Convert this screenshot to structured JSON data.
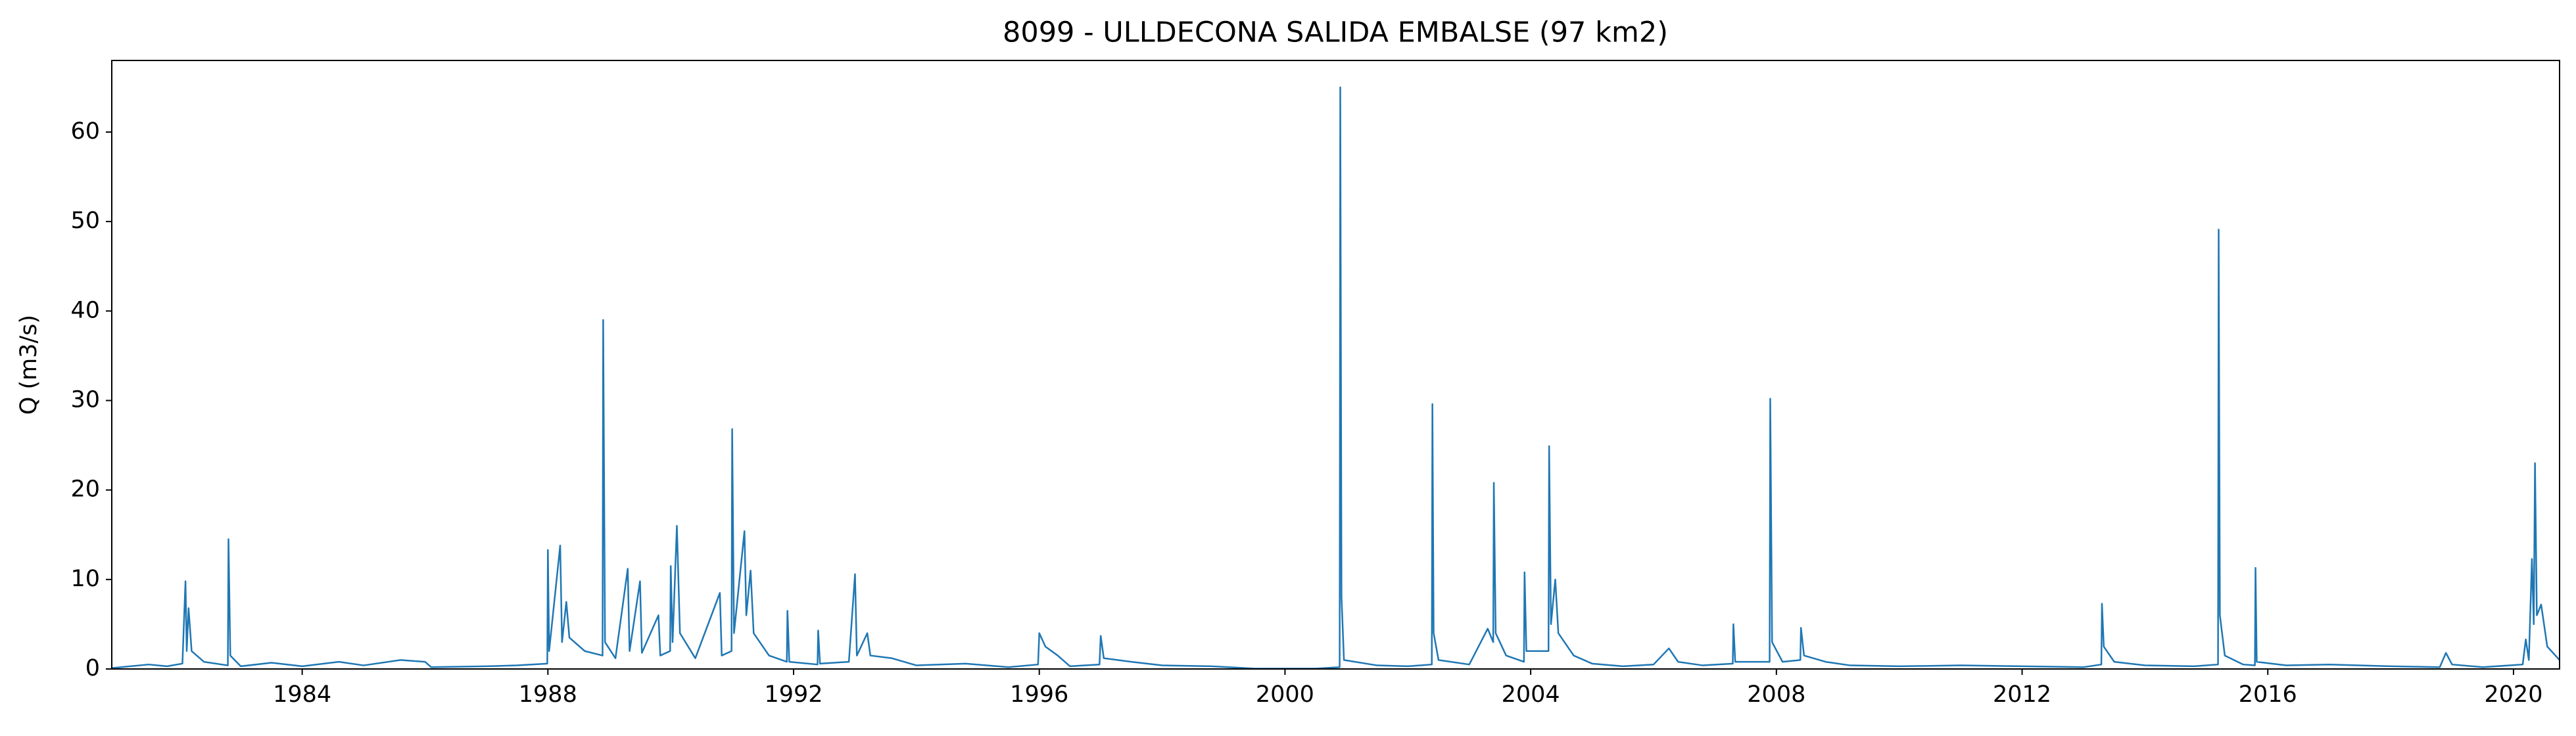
{
  "chart_data": {
    "type": "line",
    "title": "8099 - ULLDECONA SALIDA EMBALSE (97 km2)",
    "y_label": "Q (m3/s)",
    "color": "#1f77b4",
    "xlim": [
      1980.9,
      2020.75
    ],
    "xticks": [
      1984,
      1988,
      1992,
      1996,
      2000,
      2004,
      2008,
      2012,
      2016,
      2020
    ],
    "ylim": [
      0,
      68
    ],
    "yticks": [
      0,
      10,
      20,
      30,
      40,
      50,
      60
    ],
    "grid": false,
    "x": [
      1980.9,
      1981.5,
      1981.8,
      1982.05,
      1982.1,
      1982.12,
      1982.15,
      1982.2,
      1982.4,
      1982.79,
      1982.8,
      1982.83,
      1983.0,
      1983.5,
      1984.0,
      1984.6,
      1985.0,
      1985.6,
      1986.0,
      1986.1,
      1987.0,
      1987.5,
      1987.99,
      1988.0,
      1988.02,
      1988.2,
      1988.23,
      1988.3,
      1988.35,
      1988.6,
      1988.89,
      1988.9,
      1988.93,
      1989.1,
      1989.3,
      1989.33,
      1989.5,
      1989.53,
      1989.8,
      1989.83,
      1989.99,
      1990.0,
      1990.03,
      1990.1,
      1990.15,
      1990.4,
      1990.8,
      1990.83,
      1990.99,
      1991.0,
      1991.03,
      1991.2,
      1991.23,
      1991.3,
      1991.35,
      1991.6,
      1991.89,
      1991.9,
      1991.93,
      1992.39,
      1992.4,
      1992.43,
      1992.9,
      1993.0,
      1993.03,
      1993.2,
      1993.25,
      1993.6,
      1994.0,
      1994.8,
      1995.5,
      1995.98,
      1996.0,
      1996.1,
      1996.3,
      1996.5,
      1996.98,
      1997.0,
      1997.05,
      1997.5,
      1998.0,
      1998.8,
      1999.5,
      2000.5,
      2000.89,
      2000.9,
      2000.92,
      2000.96,
      2001.5,
      2002.0,
      2002.39,
      2002.4,
      2002.42,
      2002.5,
      2003.0,
      2003.3,
      2003.39,
      2003.4,
      2003.43,
      2003.6,
      2003.89,
      2003.9,
      2003.93,
      2004.29,
      2004.3,
      2004.33,
      2004.4,
      2004.45,
      2004.7,
      2005.0,
      2005.5,
      2006.0,
      2006.25,
      2006.4,
      2006.8,
      2007.29,
      2007.3,
      2007.33,
      2007.89,
      2007.9,
      2007.93,
      2008.1,
      2008.39,
      2008.4,
      2008.45,
      2008.8,
      2009.2,
      2010.0,
      2011.0,
      2012.0,
      2013.0,
      2013.29,
      2013.3,
      2013.33,
      2013.5,
      2014.0,
      2014.8,
      2015.19,
      2015.2,
      2015.22,
      2015.3,
      2015.6,
      2015.79,
      2015.8,
      2015.82,
      2016.3,
      2017.0,
      2018.0,
      2018.8,
      2018.9,
      2019.0,
      2019.5,
      2020.15,
      2020.2,
      2020.25,
      2020.3,
      2020.33,
      2020.35,
      2020.38,
      2020.45,
      2020.55,
      2020.75
    ],
    "values": [
      0.1,
      0.5,
      0.3,
      0.6,
      9.8,
      2,
      6.8,
      2,
      0.8,
      0.4,
      14.5,
      1.5,
      0.3,
      0.7,
      0.3,
      0.8,
      0.4,
      1.0,
      0.8,
      0.2,
      0.3,
      0.4,
      0.6,
      13.3,
      2,
      13.8,
      3,
      7.5,
      3.5,
      2,
      1.5,
      39,
      3,
      1.2,
      11.2,
      2,
      9.8,
      1.8,
      6,
      1.5,
      2,
      11.5,
      3,
      16,
      4,
      1.2,
      8.5,
      1.5,
      2,
      26.8,
      4,
      15.4,
      6,
      11,
      4,
      1.5,
      0.8,
      6.5,
      0.8,
      0.5,
      4.3,
      0.6,
      0.8,
      10.6,
      1.5,
      4,
      1.5,
      1.2,
      0.4,
      0.6,
      0.2,
      0.5,
      4,
      2.5,
      1.5,
      0.3,
      0.5,
      3.7,
      1.2,
      0.8,
      0.4,
      0.3,
      0.05,
      0.05,
      0.2,
      65,
      8,
      1,
      0.4,
      0.3,
      0.5,
      29.6,
      4,
      1,
      0.5,
      4.5,
      3,
      20.8,
      4,
      1.5,
      0.8,
      10.8,
      2,
      2,
      24.9,
      5,
      10,
      4,
      1.5,
      0.6,
      0.3,
      0.5,
      2.3,
      0.8,
      0.4,
      0.6,
      5,
      0.8,
      0.8,
      30.2,
      3,
      0.8,
      1,
      4.6,
      1.5,
      0.8,
      0.4,
      0.3,
      0.4,
      0.3,
      0.2,
      0.5,
      7.3,
      2.5,
      0.8,
      0.4,
      0.3,
      0.5,
      49.1,
      6,
      1.5,
      0.5,
      0.4,
      11.3,
      0.8,
      0.4,
      0.5,
      0.3,
      0.2,
      1.8,
      0.5,
      0.2,
      0.5,
      3.3,
      1,
      12.3,
      5,
      23,
      6,
      7.2,
      2.5,
      1
    ]
  }
}
